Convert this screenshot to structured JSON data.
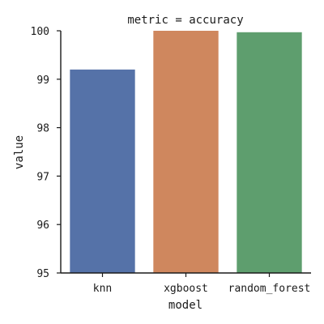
{
  "chart_data": {
    "type": "bar",
    "title": "metric = accuracy",
    "xlabel": "model",
    "ylabel": "value",
    "categories": [
      "knn",
      "xgboost",
      "random_forest"
    ],
    "values": [
      99.2,
      100.0,
      99.97
    ],
    "ylim": [
      95,
      100
    ],
    "yticks": [
      "95",
      "96",
      "97",
      "98",
      "99",
      "100"
    ],
    "colors": [
      "#5572a8",
      "#cf875e",
      "#5e9e6e"
    ],
    "grid": false,
    "legend": "none"
  }
}
